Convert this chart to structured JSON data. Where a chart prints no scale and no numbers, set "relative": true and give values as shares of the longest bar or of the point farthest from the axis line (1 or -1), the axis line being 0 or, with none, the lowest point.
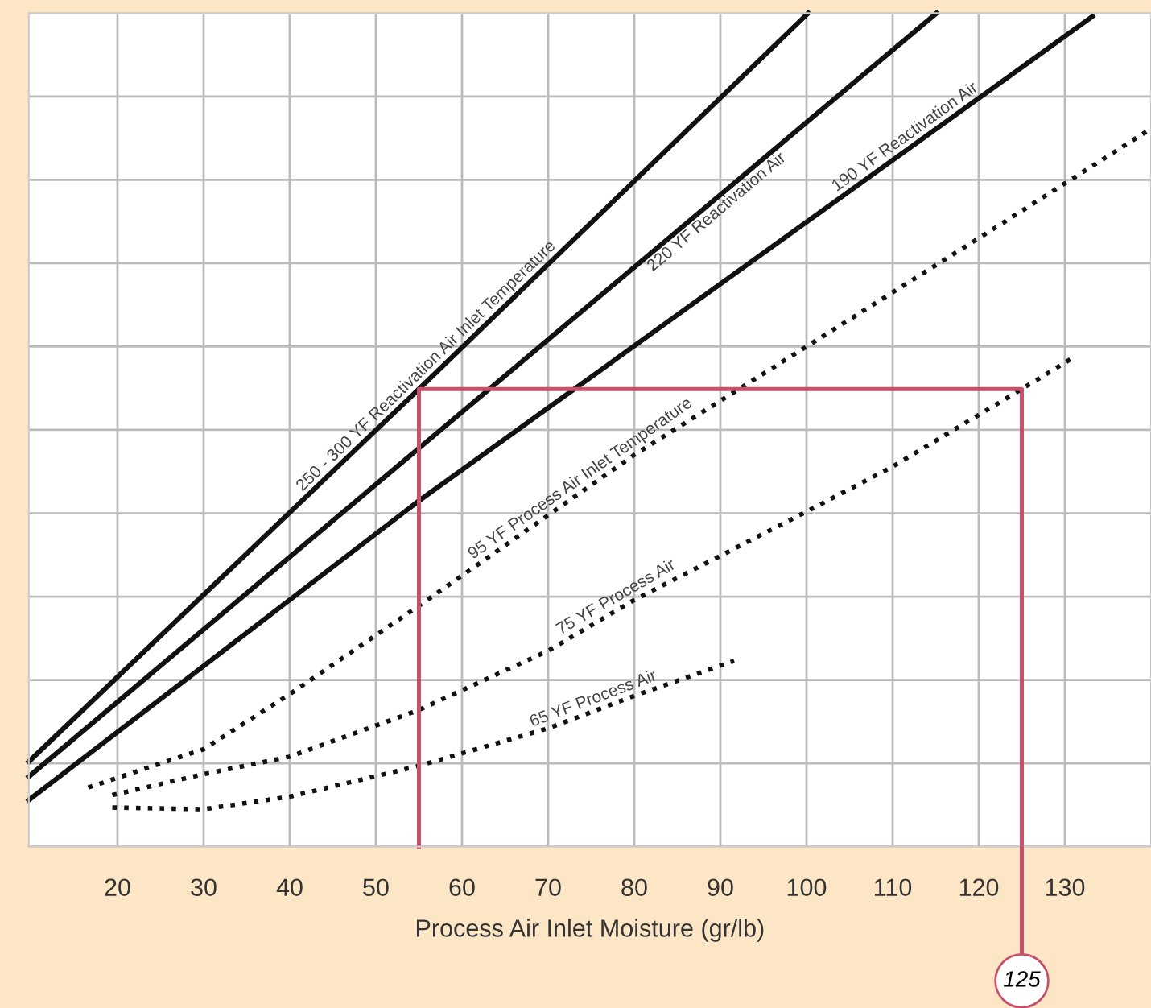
{
  "chart_data": {
    "type": "line",
    "relative": true,
    "xlabel": "Process Air Inlet Moisture (gr/lb)",
    "xlim": [
      9.7,
      140
    ],
    "xticks": [
      20,
      30,
      40,
      50,
      60,
      70,
      80,
      90,
      100,
      110,
      120,
      130
    ],
    "grid": true,
    "legend": false,
    "tick_labels": "x",
    "series": [
      {
        "name": "250 - 300 YF Reactivation Air Inlet Temperature",
        "color": "#111111",
        "line_style": "solid",
        "x": [
          9.7,
          55,
          100.2
        ],
        "values": [
          0.102,
          0.549,
          1.0
        ]
      },
      {
        "name": "220 YF Reactivation Air",
        "color": "#111111",
        "line_style": "solid",
        "x": [
          9.7,
          55,
          115.1
        ],
        "values": [
          0.084,
          0.478,
          1.0
        ]
      },
      {
        "name": "190 YF Reactivation Air",
        "color": "#111111",
        "line_style": "solid",
        "x": [
          9.7,
          55,
          133.2
        ],
        "values": [
          0.056,
          0.415,
          0.996
        ]
      },
      {
        "name": "95 YF Process Air Inlet Temperature",
        "color": "#111111",
        "line_style": "dotted",
        "x": [
          16.6,
          30,
          40,
          55,
          80,
          100,
          120,
          139.8
        ],
        "values": [
          0.071,
          0.117,
          0.183,
          0.289,
          0.47,
          0.6,
          0.73,
          0.86
        ]
      },
      {
        "name": "75 YF Process Air",
        "color": "#111111",
        "line_style": "dotted",
        "x": [
          19.4,
          30,
          40,
          55,
          70,
          80,
          100,
          110,
          125,
          131
        ],
        "values": [
          0.062,
          0.087,
          0.108,
          0.164,
          0.235,
          0.296,
          0.402,
          0.456,
          0.549,
          0.587
        ]
      },
      {
        "name": "65 YF Process Air",
        "color": "#111111",
        "line_style": "dotted",
        "x": [
          19.4,
          30,
          40,
          55,
          70,
          80,
          91.6
        ],
        "values": [
          0.047,
          0.045,
          0.06,
          0.097,
          0.142,
          0.181,
          0.223
        ]
      },
      {
        "color": "#c8506a",
        "line_style": "solid",
        "x": [
          55,
          55,
          125,
          125
        ],
        "values": [
          0,
          0.549,
          0.549,
          0
        ]
      }
    ],
    "annotations": [
      {
        "text": "125",
        "x": 125,
        "y": 0
      }
    ]
  }
}
